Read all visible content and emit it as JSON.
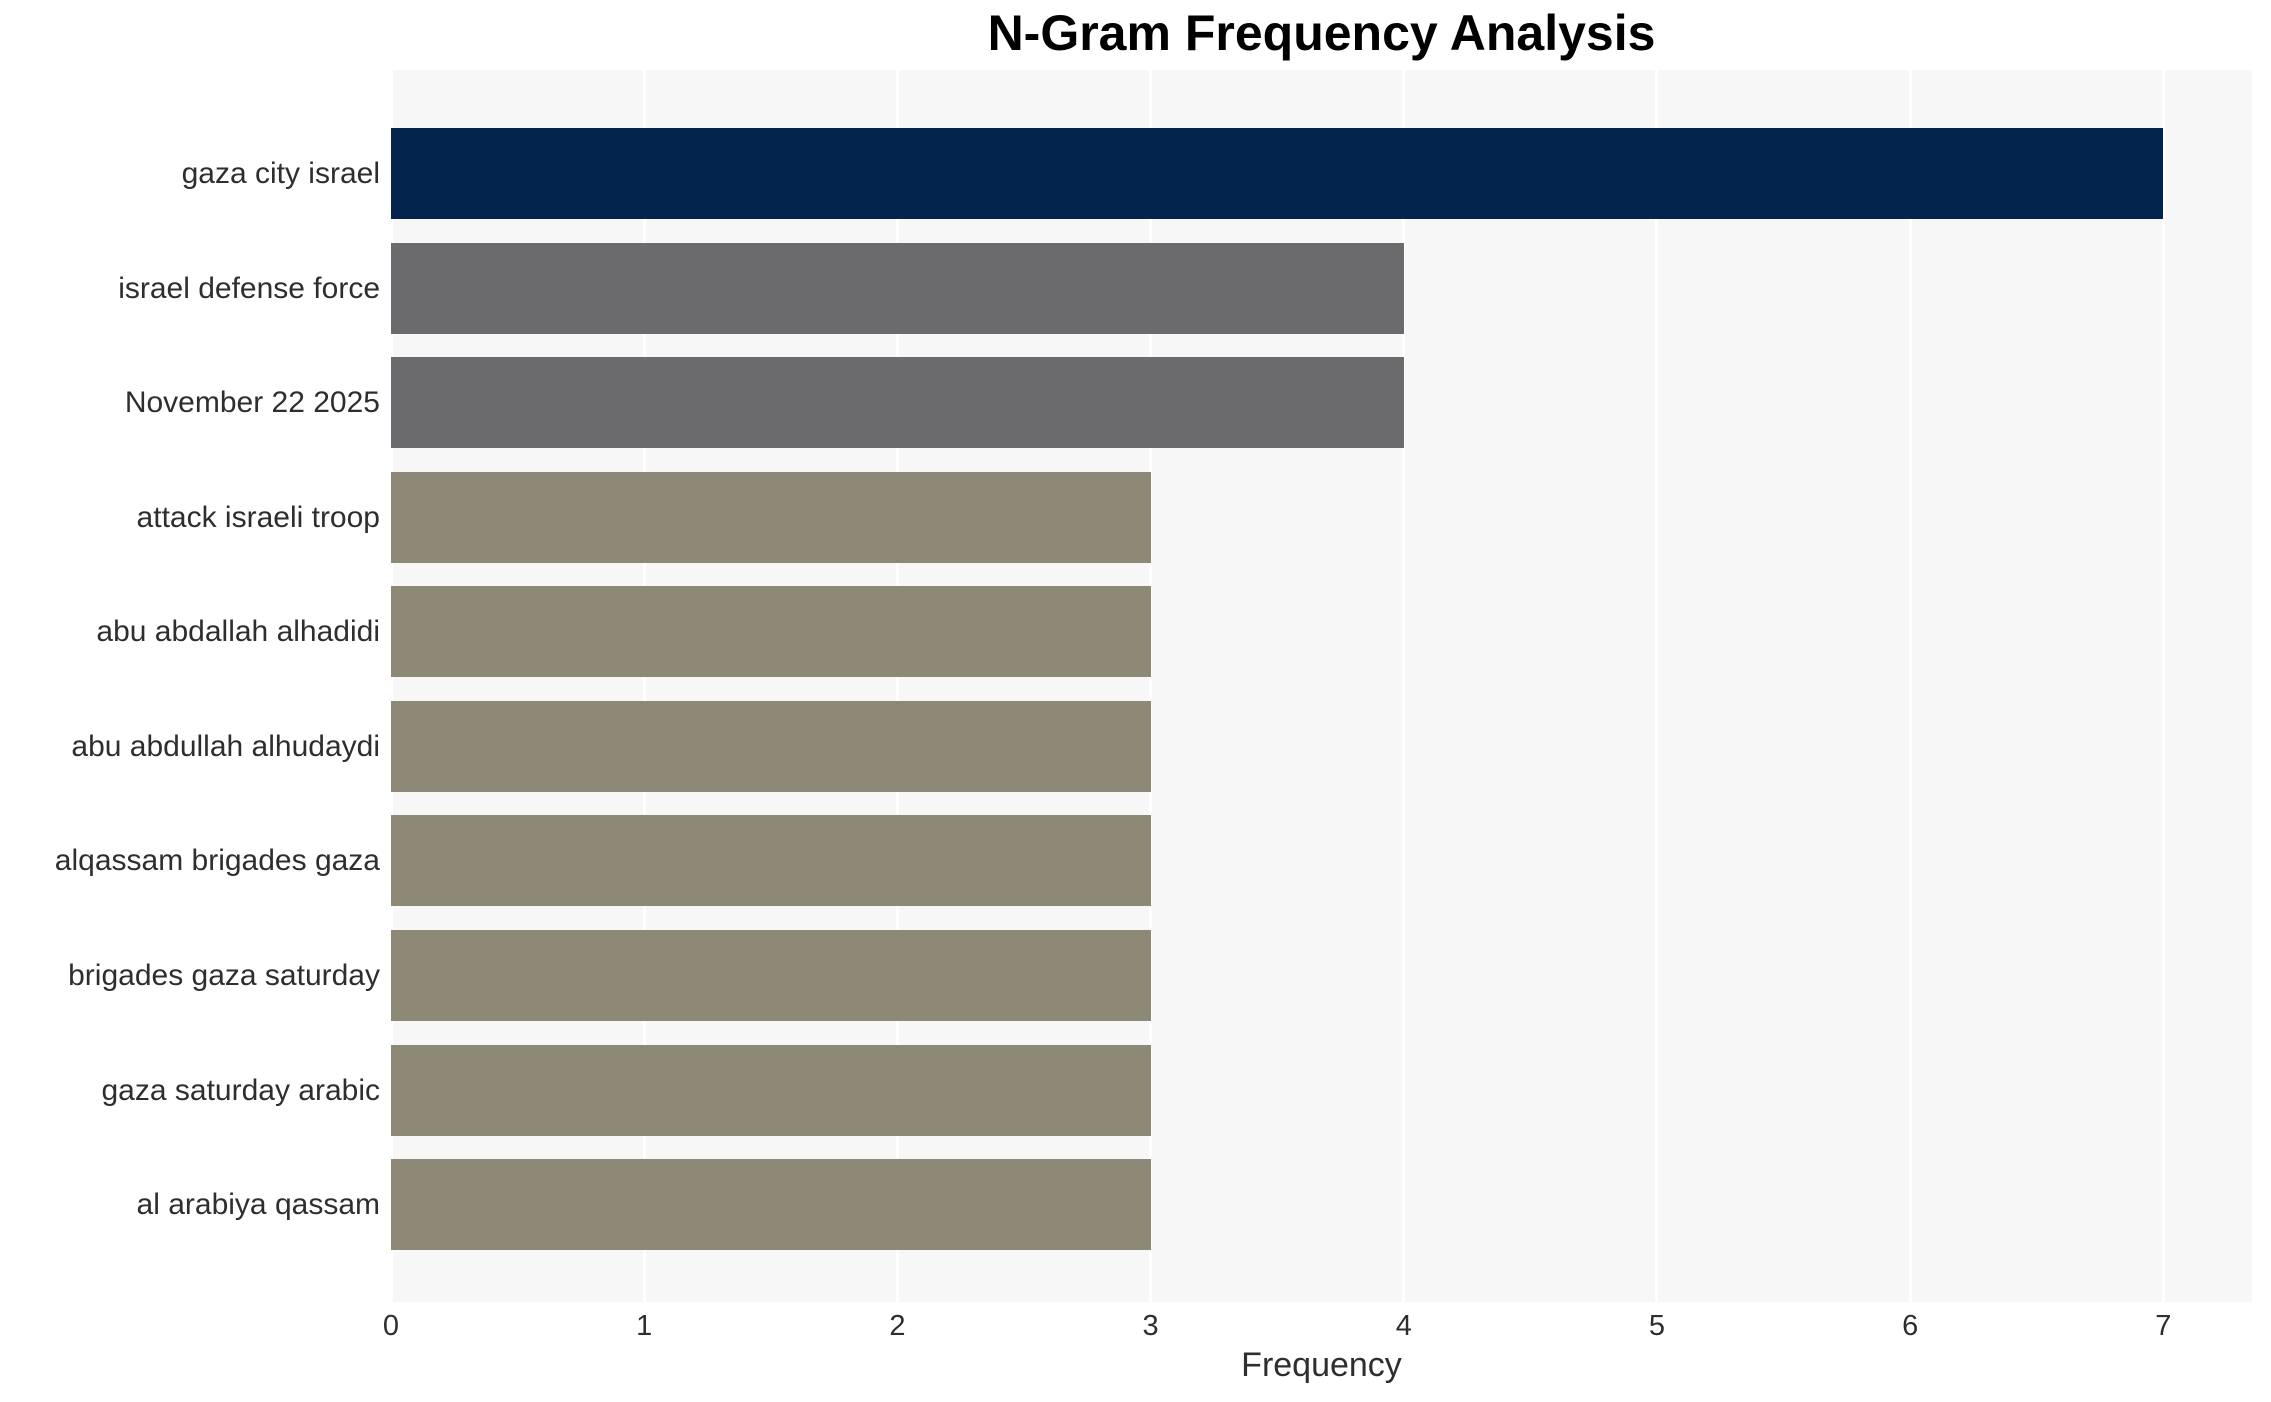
{
  "page": {
    "background_color": "#ffffff"
  },
  "chart_data": {
    "type": "bar",
    "orientation": "horizontal",
    "title": "N-Gram Frequency Analysis",
    "xlabel": "Frequency",
    "ylabel": "",
    "categories": [
      "gaza city israel",
      "israel defense force",
      "November 22 2025",
      "attack israeli troop",
      "abu abdallah alhadidi",
      "abu abdullah alhudaydi",
      "alqassam brigades gaza",
      "brigades gaza saturday",
      "gaza saturday arabic",
      "al arabiya qassam"
    ],
    "values": [
      7,
      4,
      4,
      3,
      3,
      3,
      3,
      3,
      3,
      3
    ],
    "bar_colors": [
      "#02234c",
      "#6b6b6e",
      "#6b6b6e",
      "#8e8977",
      "#8e8977",
      "#8e8977",
      "#8e8977",
      "#8e8977",
      "#8e8977",
      "#8e8977"
    ],
    "xticks": [
      0,
      1,
      2,
      3,
      4,
      5,
      6,
      7
    ],
    "xlim": [
      0,
      7.35
    ],
    "legend": "none",
    "grid": "vertical gridlines only",
    "plot_background_color": "#f7f7f8",
    "gridline_color": "#ffffff",
    "tick_text_color": "#2e2e2e",
    "title_color": "#000000"
  }
}
